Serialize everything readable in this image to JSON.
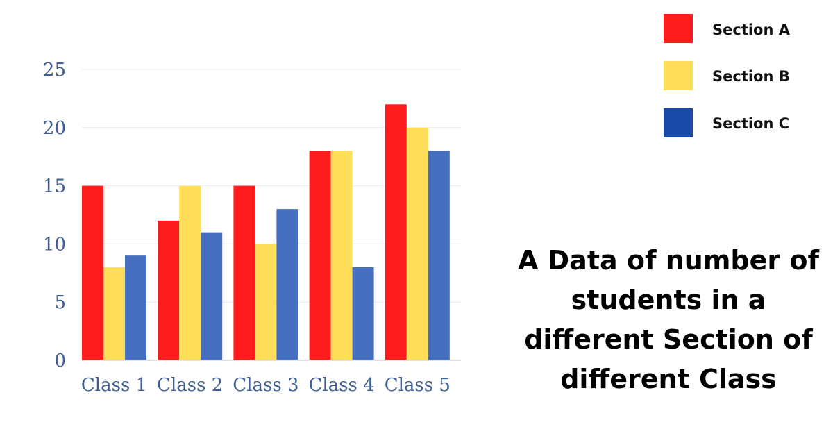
{
  "chart_data": {
    "type": "bar",
    "title": "A Data of number of students in a different Section of different Class",
    "categories": [
      "Class 1",
      "Class 2",
      "Class 3",
      "Class 4",
      "Class 5"
    ],
    "series": [
      {
        "name": "Section A",
        "color": "#ff1c1c",
        "values": [
          15,
          12,
          15,
          18,
          22
        ]
      },
      {
        "name": "Section B",
        "color": "#ffde59",
        "values": [
          8,
          15,
          10,
          18,
          20
        ]
      },
      {
        "name": "Section C",
        "color": "#4670bf",
        "values": [
          9,
          11,
          13,
          8,
          18
        ]
      }
    ],
    "yticks": [
      "0",
      "5",
      "10",
      "15",
      "20",
      "25"
    ],
    "ylim": [
      0,
      25
    ],
    "grid": true,
    "legend_position": "top-right"
  }
}
